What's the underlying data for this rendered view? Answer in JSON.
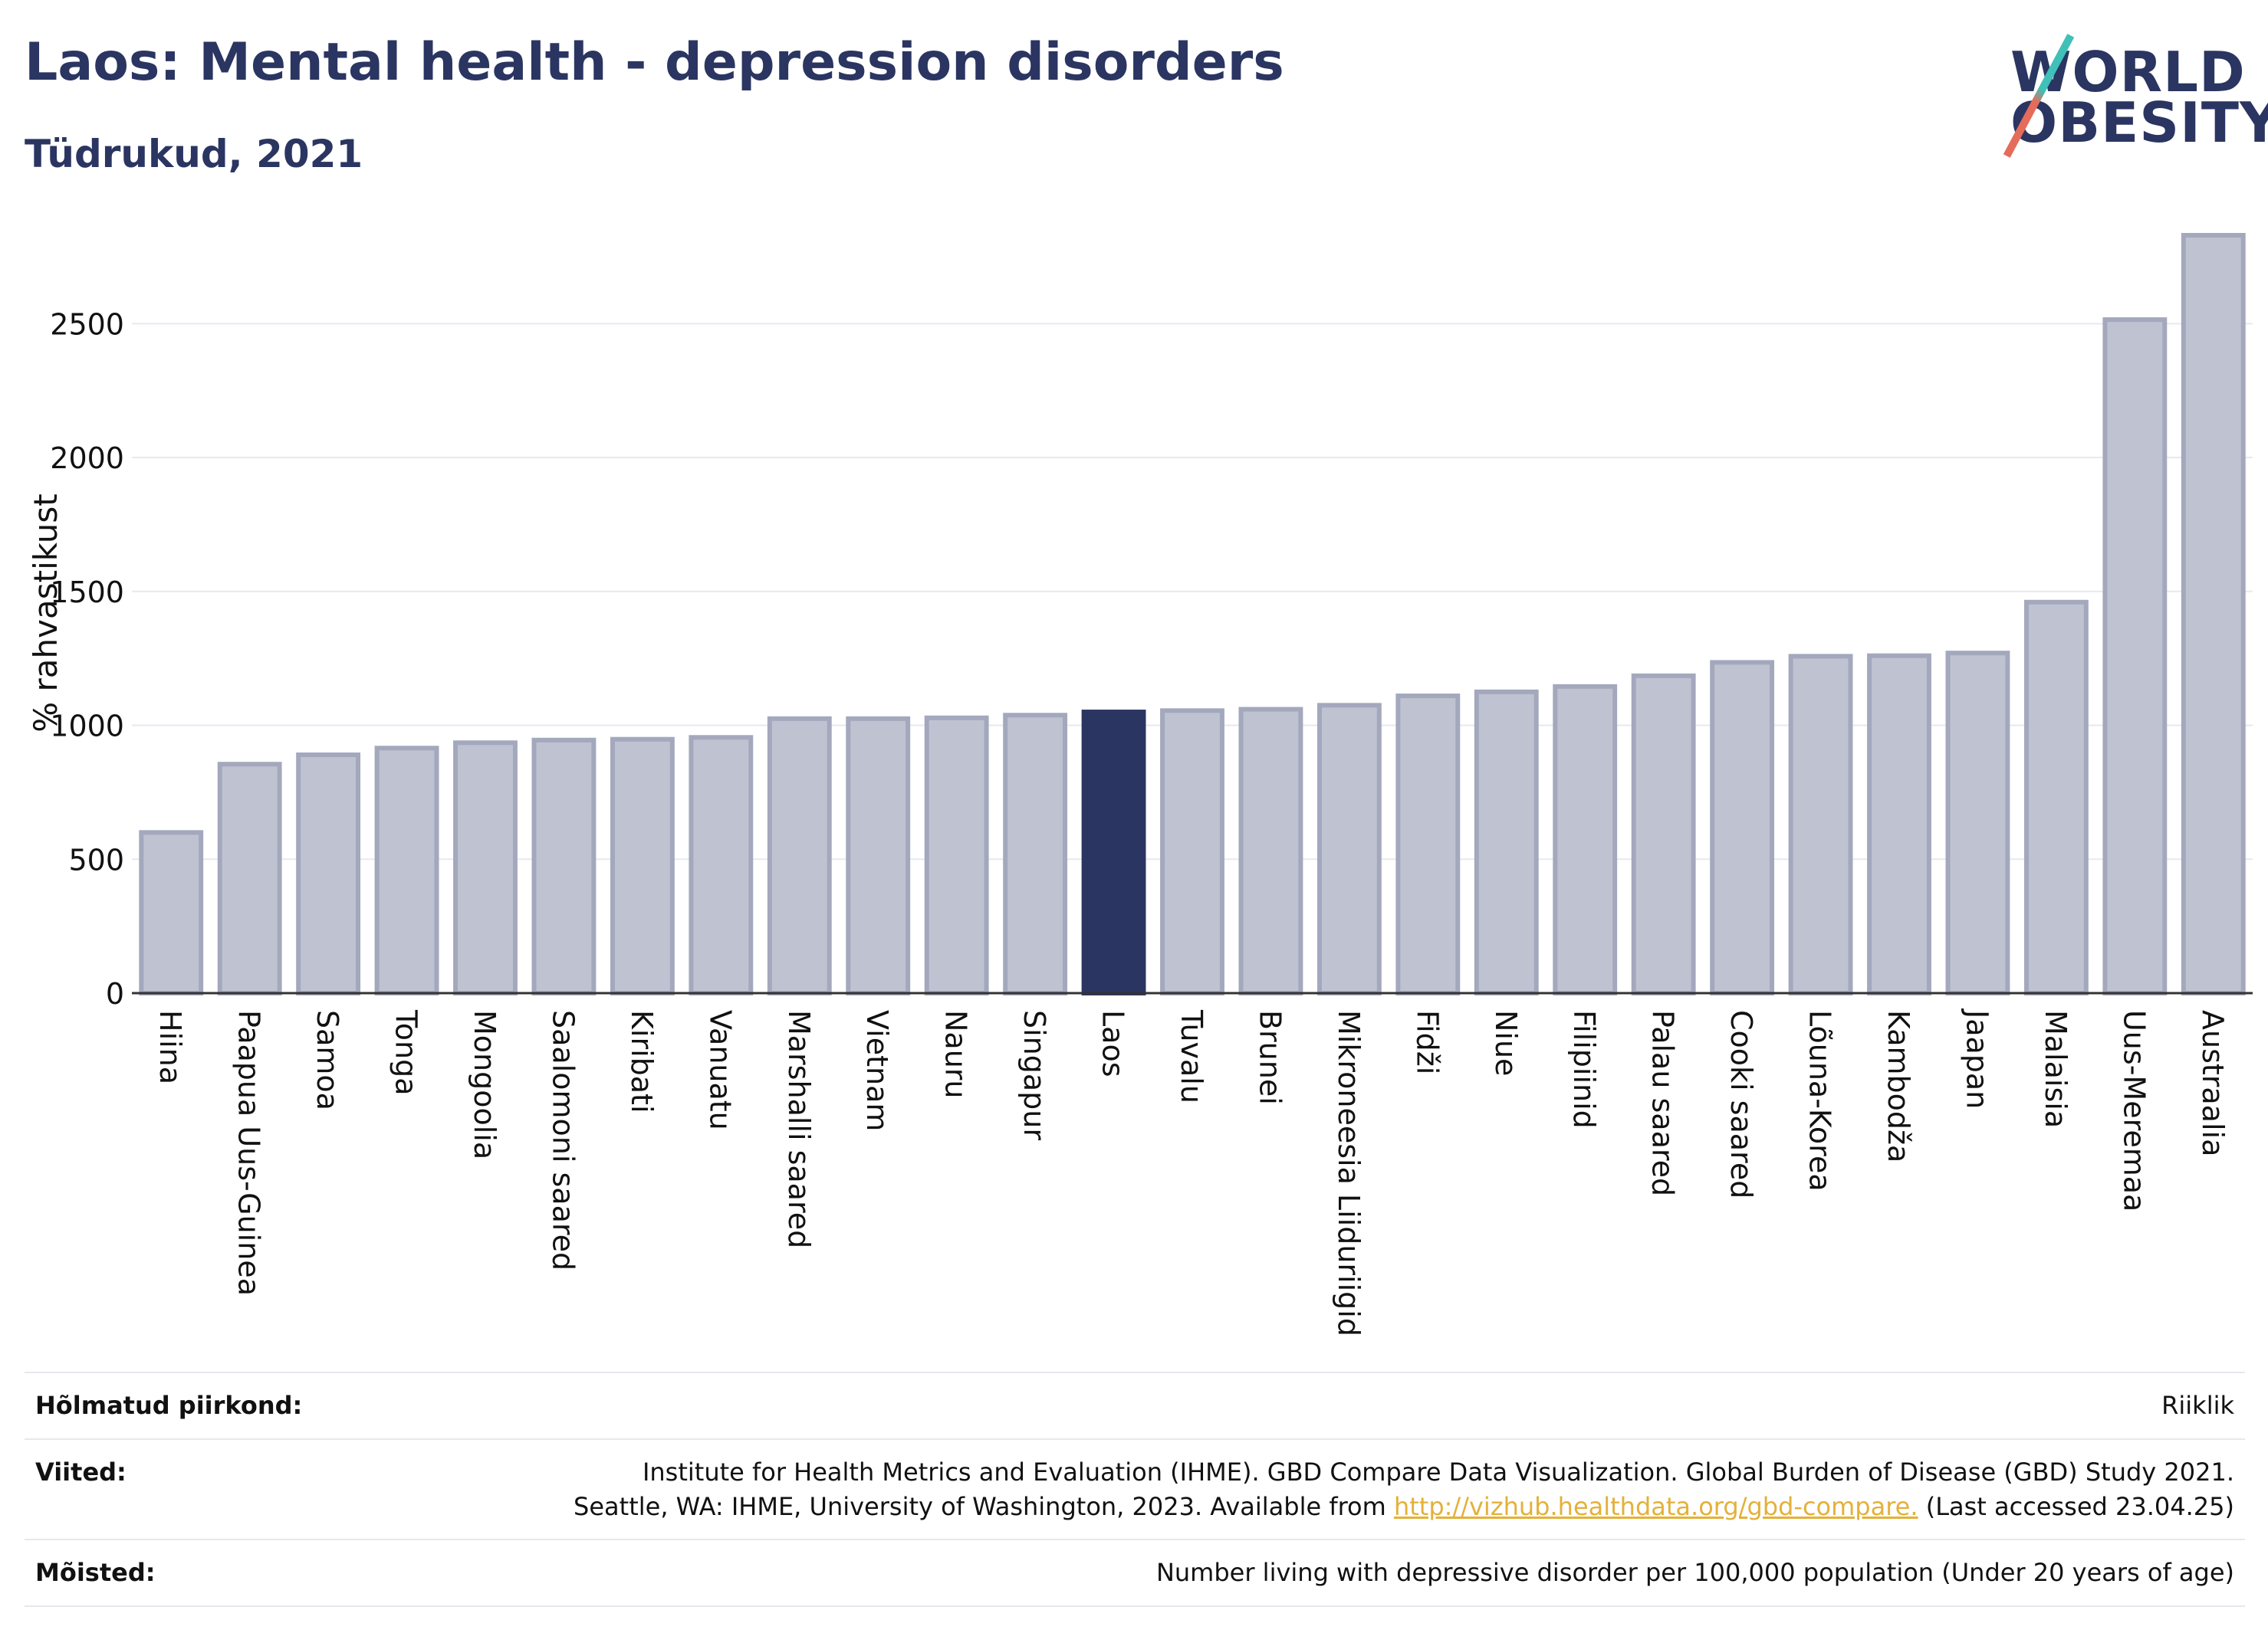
{
  "header": {
    "title": "Laos: Mental health - depression disorders",
    "subtitle": "Tüdrukud, 2021"
  },
  "logo": {
    "line1": "WORLD",
    "line2": "OBESITY"
  },
  "colors": {
    "bar": "#bfc2d1",
    "bar_border": "#a3a8bd",
    "highlight": "#2b3561",
    "grid": "#e7e9ef",
    "text": "#2b3561"
  },
  "chart_data": {
    "type": "bar",
    "ylabel": "% rahvastikust",
    "xlabel": "",
    "ylim": [
      0,
      2850
    ],
    "yticks": [
      0,
      500,
      1000,
      1500,
      2000,
      2500
    ],
    "grid": true,
    "highlight": "Laos",
    "categories": [
      "Hiina",
      "Paapua Uus-Guinea",
      "Samoa",
      "Tonga",
      "Mongoolia",
      "Saalomoni saared",
      "Kiribati",
      "Vanuatu",
      "Marshalli saared",
      "Vietnam",
      "Nauru",
      "Singapur",
      "Laos",
      "Tuvalu",
      "Brunei",
      "Mikroneesia Liiduriigid",
      "Fidži",
      "Niue",
      "Filipiinid",
      "Palau saared",
      "Cooki saared",
      "Lõuna-Korea",
      "Kambodža",
      "Jaapan",
      "Malaisia",
      "Uus-Meremaa",
      "Austraalia"
    ],
    "values": [
      600,
      855,
      890,
      915,
      935,
      945,
      948,
      955,
      1025,
      1025,
      1028,
      1038,
      1050,
      1055,
      1060,
      1075,
      1110,
      1125,
      1145,
      1185,
      1235,
      1258,
      1260,
      1270,
      1460,
      2515,
      2830
    ]
  },
  "info": {
    "region_label": "Hõlmatud piirkond:",
    "region_value": "Riiklik",
    "refs_label": "Viited:",
    "refs_line1": "Institute for Health Metrics and Evaluation (IHME). GBD Compare Data Visualization. Global Burden of Disease (GBD) Study 2021.",
    "refs_line2_pre": "Seattle, WA: IHME, University of Washington, 2023. Available from ",
    "refs_link": "http://vizhub.healthdata.org/gbd-compare.",
    "refs_line2_post": " (Last accessed 23.04.25)",
    "defs_label": "Mõisted:",
    "defs_value": "Number living with depressive disorder per 100,000 population (Under 20 years of age)"
  }
}
